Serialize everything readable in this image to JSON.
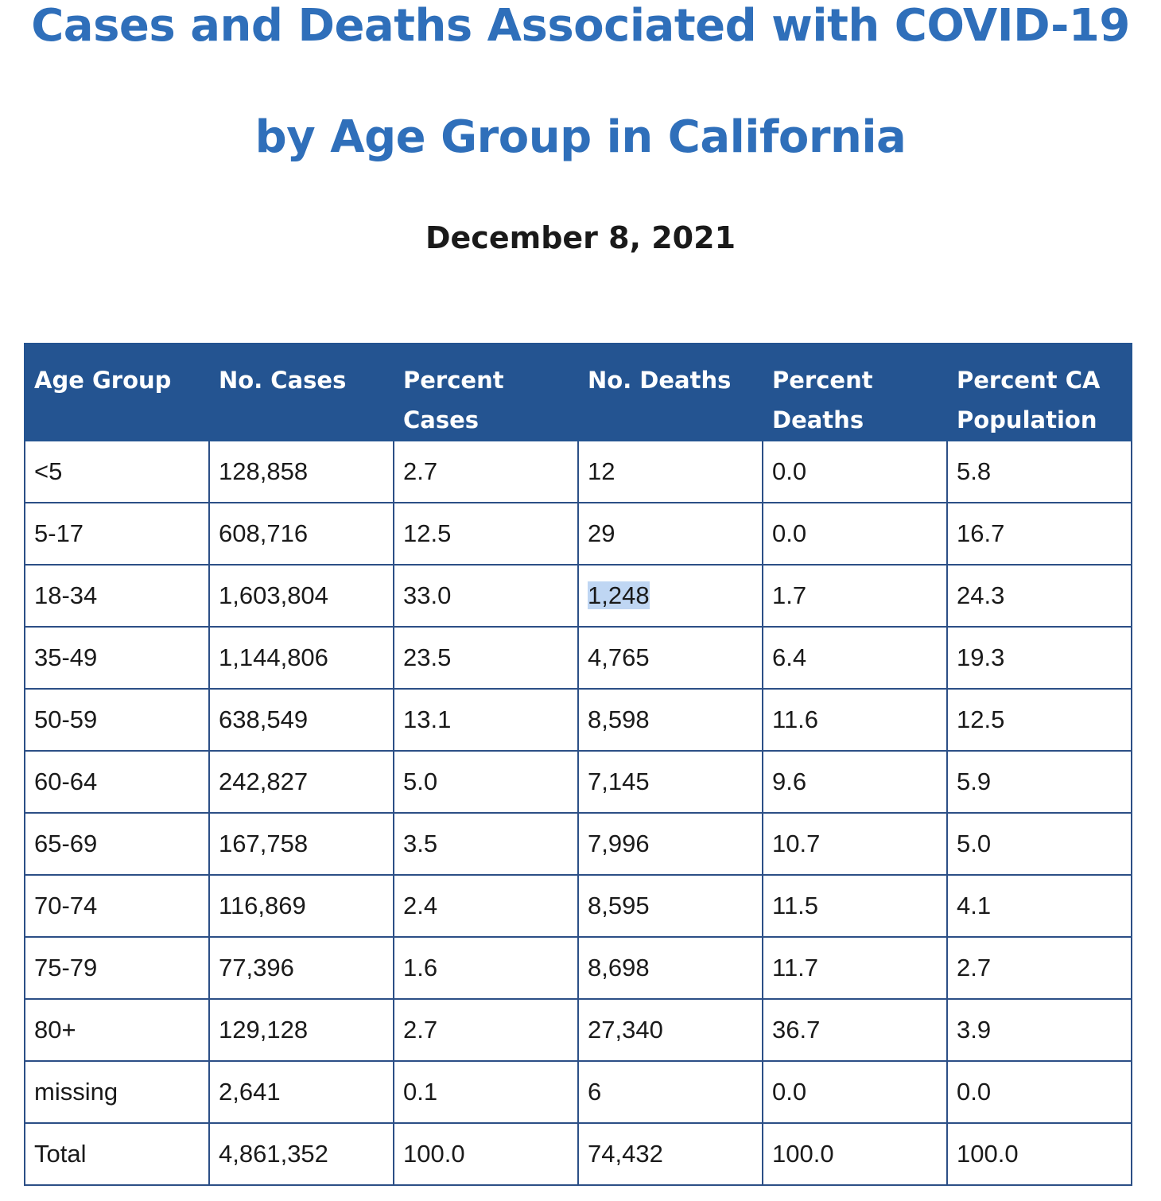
{
  "title_line1": "Cases and Deaths Associated with COVID-19",
  "title_line2": "by Age Group in California",
  "date": "December 8, 2021",
  "table": {
    "headers": [
      [
        "Age Group",
        ""
      ],
      [
        "No. Cases",
        ""
      ],
      [
        "Percent",
        "Cases"
      ],
      [
        "No. Deaths",
        ""
      ],
      [
        "Percent",
        "Deaths"
      ],
      [
        "Percent CA",
        "Population"
      ]
    ],
    "rows": [
      [
        "<5",
        "128,858",
        "2.7",
        "12",
        "0.0",
        "5.8"
      ],
      [
        "5-17",
        "608,716",
        "12.5",
        "29",
        "0.0",
        "16.7"
      ],
      [
        "18-34",
        "1,603,804",
        "33.0",
        "1,248",
        "1.7",
        "24.3"
      ],
      [
        "35-49",
        "1,144,806",
        "23.5",
        "4,765",
        "6.4",
        "19.3"
      ],
      [
        "50-59",
        "638,549",
        "13.1",
        "8,598",
        "11.6",
        "12.5"
      ],
      [
        "60-64",
        "242,827",
        "5.0",
        "7,145",
        "9.6",
        "5.9"
      ],
      [
        "65-69",
        "167,758",
        "3.5",
        "7,996",
        "10.7",
        "5.0"
      ],
      [
        "70-74",
        "116,869",
        "2.4",
        "8,595",
        "11.5",
        "4.1"
      ],
      [
        "75-79",
        "77,396",
        "1.6",
        "8,698",
        "11.7",
        "2.7"
      ],
      [
        "80+",
        "129,128",
        "2.7",
        "27,340",
        "36.7",
        "3.9"
      ],
      [
        "missing",
        "2,641",
        "0.1",
        "6",
        "0.0",
        "0.0"
      ],
      [
        "Total",
        "4,861,352",
        "100.0",
        "74,432",
        "100.0",
        "100.0"
      ]
    ]
  },
  "colors": {
    "title": "#2f6fba",
    "header_bg": "#245491",
    "border": "#2c4f86",
    "selection_highlight": "#bfd6f3"
  }
}
